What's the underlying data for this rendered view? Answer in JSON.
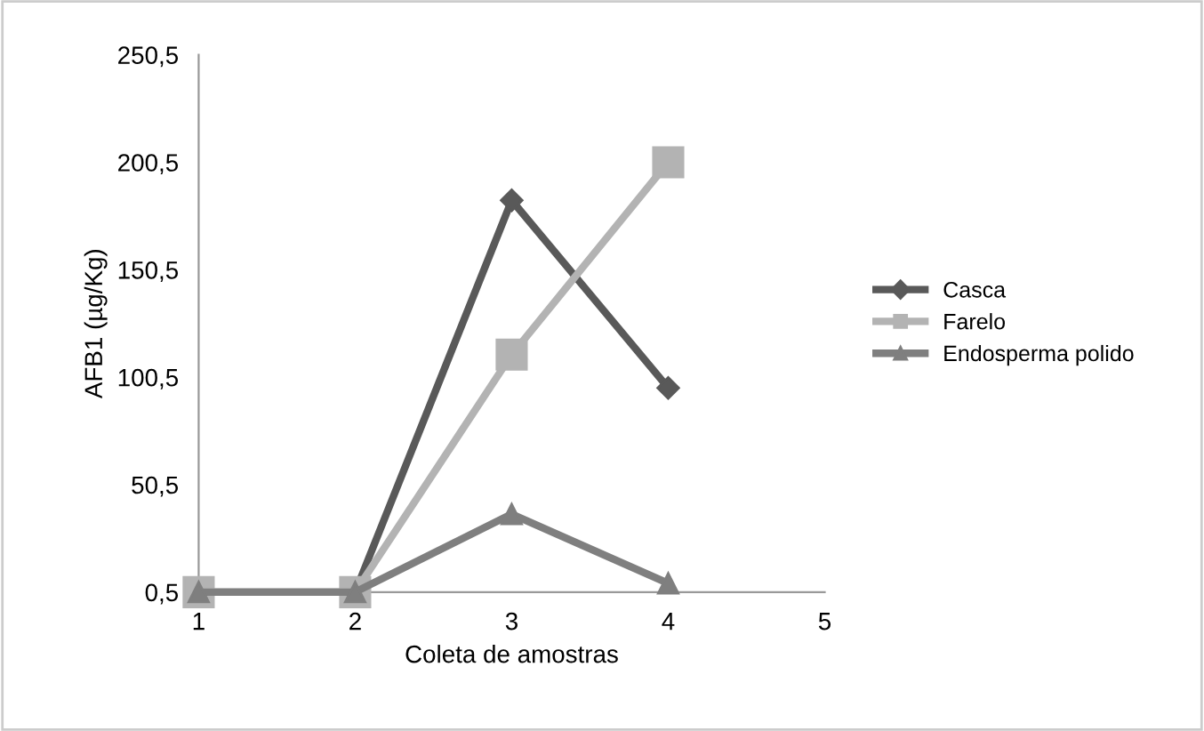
{
  "chart_data": {
    "type": "line",
    "xlabel": "Coleta de amostras",
    "ylabel": "AFB1 (µg/Kg)",
    "x": [
      1,
      2,
      3,
      4
    ],
    "xlim": [
      1,
      5
    ],
    "xticks": [
      1,
      2,
      3,
      4,
      5
    ],
    "ylim": [
      0.5,
      250.5
    ],
    "yticks": [
      {
        "value": 0.5,
        "label": "0,5"
      },
      {
        "value": 50.5,
        "label": "50,5"
      },
      {
        "value": 100.5,
        "label": "100,5"
      },
      {
        "value": 150.5,
        "label": "150,5"
      },
      {
        "value": 200.5,
        "label": "200,5"
      },
      {
        "value": 250.5,
        "label": "250,5"
      }
    ],
    "grid": false,
    "legend": "right",
    "series": [
      {
        "name": "Casca",
        "color": "#595959",
        "marker": "diamond",
        "values": [
          0.5,
          0.5,
          182.8,
          95.5
        ]
      },
      {
        "name": "Farelo",
        "color": "#b3b3b3",
        "marker": "square",
        "values": [
          0.5,
          0.5,
          111,
          200.5
        ]
      },
      {
        "name": "Endosperma polido",
        "color": "#7f7f7f",
        "marker": "triangle",
        "values": [
          0.5,
          0.5,
          36.8,
          4.6
        ]
      }
    ]
  }
}
